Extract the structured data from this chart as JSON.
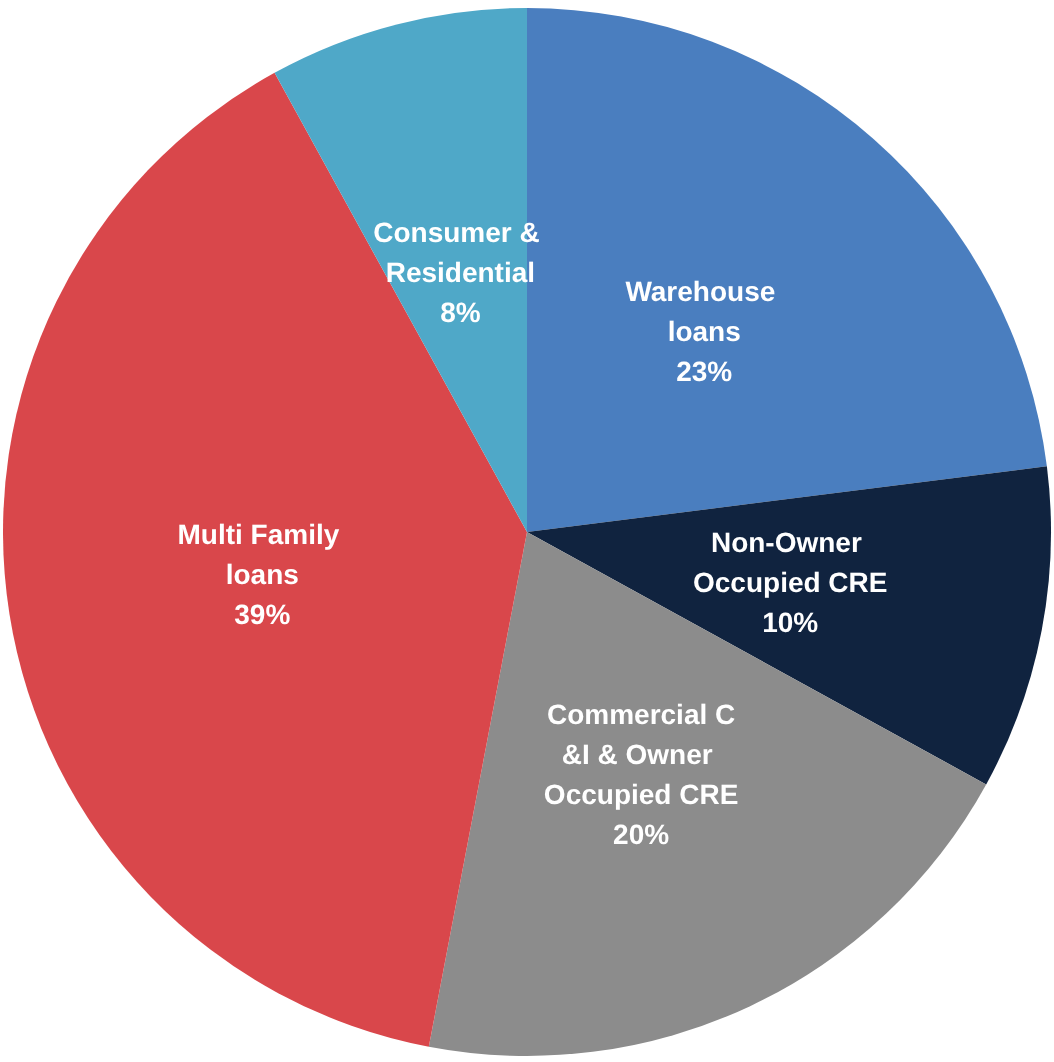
{
  "chart_data": {
    "type": "pie",
    "categories": [
      "Warehouse loans",
      "Non-Owner Occupied CRE",
      "Commercial C&I & Owner Occupied CRE",
      "Multi Family loans",
      "Consumer & Residential"
    ],
    "values": [
      23,
      10,
      20,
      39,
      8
    ],
    "value_labels": [
      "23%",
      "10%",
      "20%",
      "39%",
      "8%"
    ],
    "colors": [
      "#4a7ebf",
      "#10233f",
      "#8c8c8c",
      "#d9474b",
      "#4fa8c8"
    ]
  }
}
